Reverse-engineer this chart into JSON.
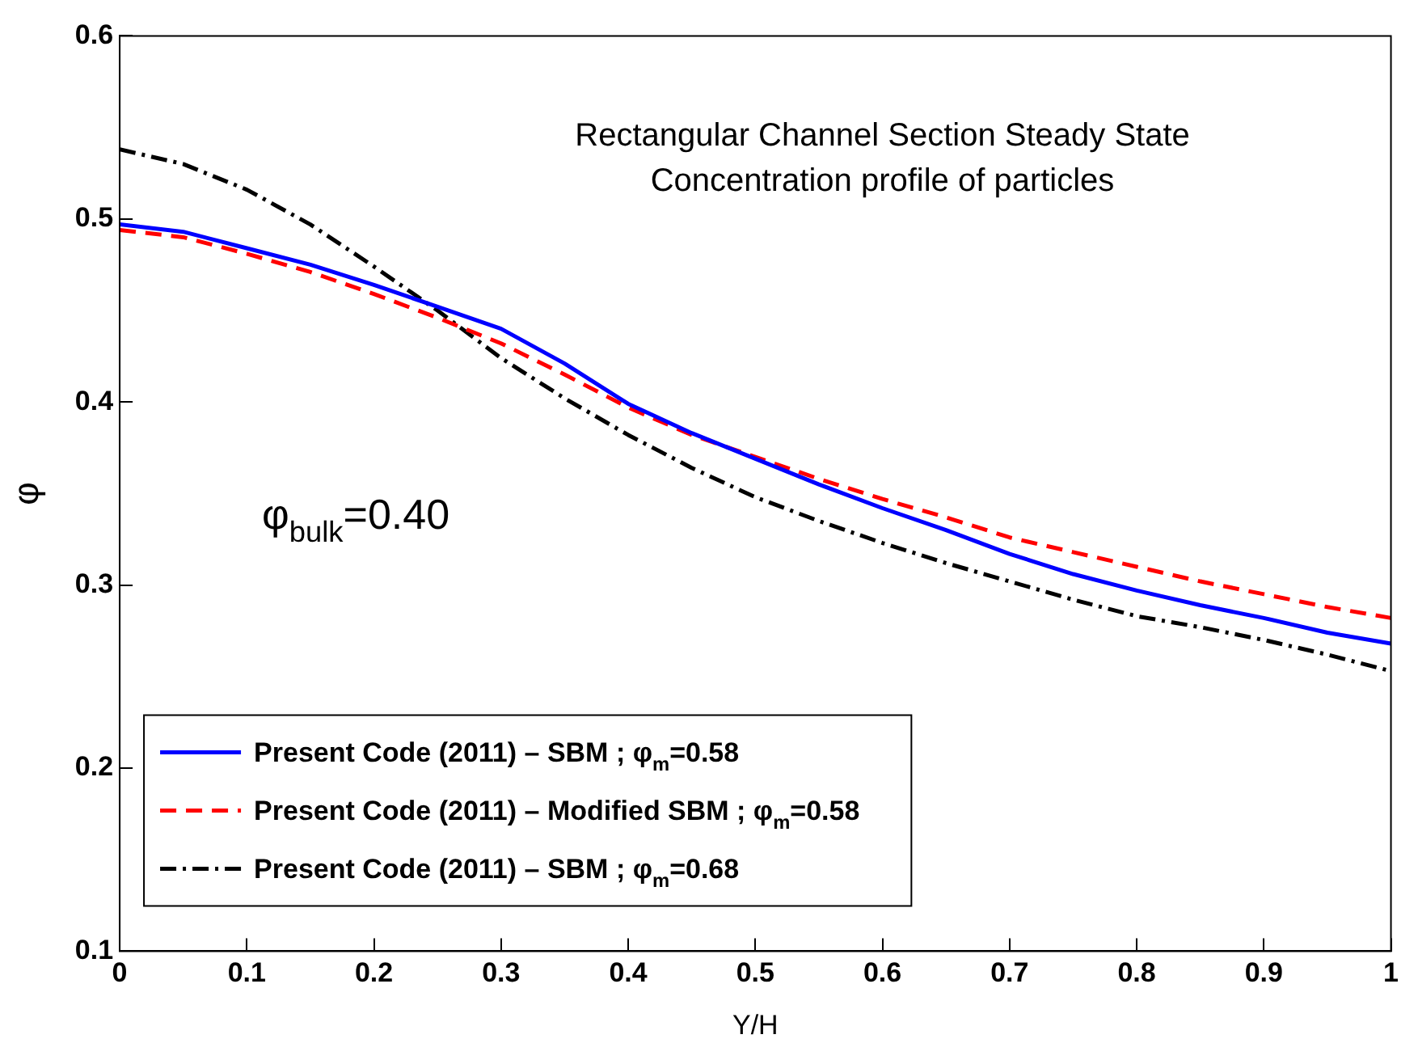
{
  "chart_data": {
    "type": "line",
    "xlabel": "Y/H",
    "ylabel": "φ",
    "annotations": [
      "Rectangular Channel Section Steady State",
      "Concentration profile of particles",
      "φ$_{bulk}$=0.40"
    ],
    "xlim": [
      0,
      1
    ],
    "xticks": [
      0,
      0.1,
      0.2,
      0.3,
      0.4,
      0.5,
      0.6,
      0.7,
      0.8,
      0.9,
      1
    ],
    "ylim": [
      0.1,
      0.6
    ],
    "yticks": [
      0.1,
      0.2,
      0.3,
      0.4,
      0.5,
      0.6
    ],
    "grid": false,
    "legend": "bottom left",
    "marker": "none",
    "series": [
      {
        "name": "Present Code (2011) – SBM ; φ$_{m}$=0.58",
        "color": "#0000ff",
        "line_style": "solid",
        "x": [
          0,
          0.05,
          0.1,
          0.15,
          0.2,
          0.25,
          0.3,
          0.35,
          0.4,
          0.45,
          0.5,
          0.55,
          0.6,
          0.65,
          0.7,
          0.75,
          0.8,
          0.85,
          0.9,
          0.95,
          1
        ],
        "values": [
          0.497,
          0.493,
          0.484,
          0.475,
          0.464,
          0.452,
          0.44,
          0.421,
          0.399,
          0.383,
          0.369,
          0.355,
          0.342,
          0.33,
          0.317,
          0.306,
          0.297,
          0.289,
          0.282,
          0.274,
          0.268
        ]
      },
      {
        "name": "Present Code (2011) – Modified SBM ; φ$_{m}$=0.58",
        "color": "#ff0000",
        "line_style": "dashed",
        "x": [
          0,
          0.05,
          0.1,
          0.15,
          0.2,
          0.25,
          0.3,
          0.35,
          0.4,
          0.45,
          0.5,
          0.55,
          0.6,
          0.65,
          0.7,
          0.75,
          0.8,
          0.85,
          0.9,
          0.95,
          1
        ],
        "values": [
          0.494,
          0.49,
          0.481,
          0.471,
          0.459,
          0.446,
          0.432,
          0.415,
          0.397,
          0.382,
          0.37,
          0.358,
          0.347,
          0.337,
          0.326,
          0.318,
          0.31,
          0.302,
          0.295,
          0.288,
          0.282
        ]
      },
      {
        "name": "Present Code (2011) – SBM ; φ$_{m}$=0.68",
        "color": "#000000",
        "line_style": "dashdot",
        "x": [
          0,
          0.05,
          0.1,
          0.15,
          0.2,
          0.25,
          0.3,
          0.35,
          0.4,
          0.45,
          0.5,
          0.55,
          0.6,
          0.65,
          0.7,
          0.75,
          0.8,
          0.85,
          0.9,
          0.95,
          1
        ],
        "values": [
          0.538,
          0.53,
          0.516,
          0.497,
          0.474,
          0.45,
          0.424,
          0.402,
          0.382,
          0.364,
          0.348,
          0.335,
          0.323,
          0.312,
          0.302,
          0.292,
          0.283,
          0.277,
          0.27,
          0.262,
          0.253
        ]
      }
    ]
  }
}
